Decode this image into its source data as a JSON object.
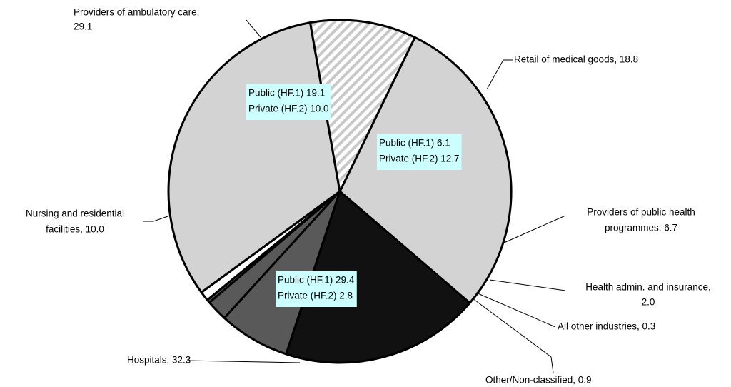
{
  "chart_data": {
    "type": "pie",
    "labels": [
      [
        "Providers of ambulatory care,",
        "29.1"
      ],
      [
        "Retail of medical goods, 18.8"
      ],
      [
        "Providers of public health",
        "programmes, 6.7"
      ],
      [
        "Health admin. and insurance,",
        "2.0"
      ],
      [
        "All other industries, 0.3"
      ],
      [
        "Other/Non-classified, 0.9"
      ],
      [
        "Hospitals, 32.3"
      ],
      [
        "Nursing and residential",
        "facilities, 10.0"
      ]
    ],
    "values": [
      29.1,
      18.8,
      6.7,
      2.0,
      0.3,
      0.9,
      32.3,
      10.0
    ],
    "colors": [
      "#d3d3d3",
      "#111111",
      "#595959",
      "#595959",
      "#595959",
      "#ffffff",
      "#d3d3d3",
      "#ffffff"
    ],
    "hatched": [
      false,
      false,
      false,
      false,
      false,
      false,
      false,
      true
    ],
    "annotations": [
      [
        "Public (HF.1) 19.1",
        "Private (HF.2) 10.0"
      ],
      [
        "Public (HF.1) 6.1",
        "Private (HF.2) 12.7"
      ],
      [
        "Public (HF.1) 29.4",
        "Private (HF.2) 2.8"
      ]
    ]
  }
}
